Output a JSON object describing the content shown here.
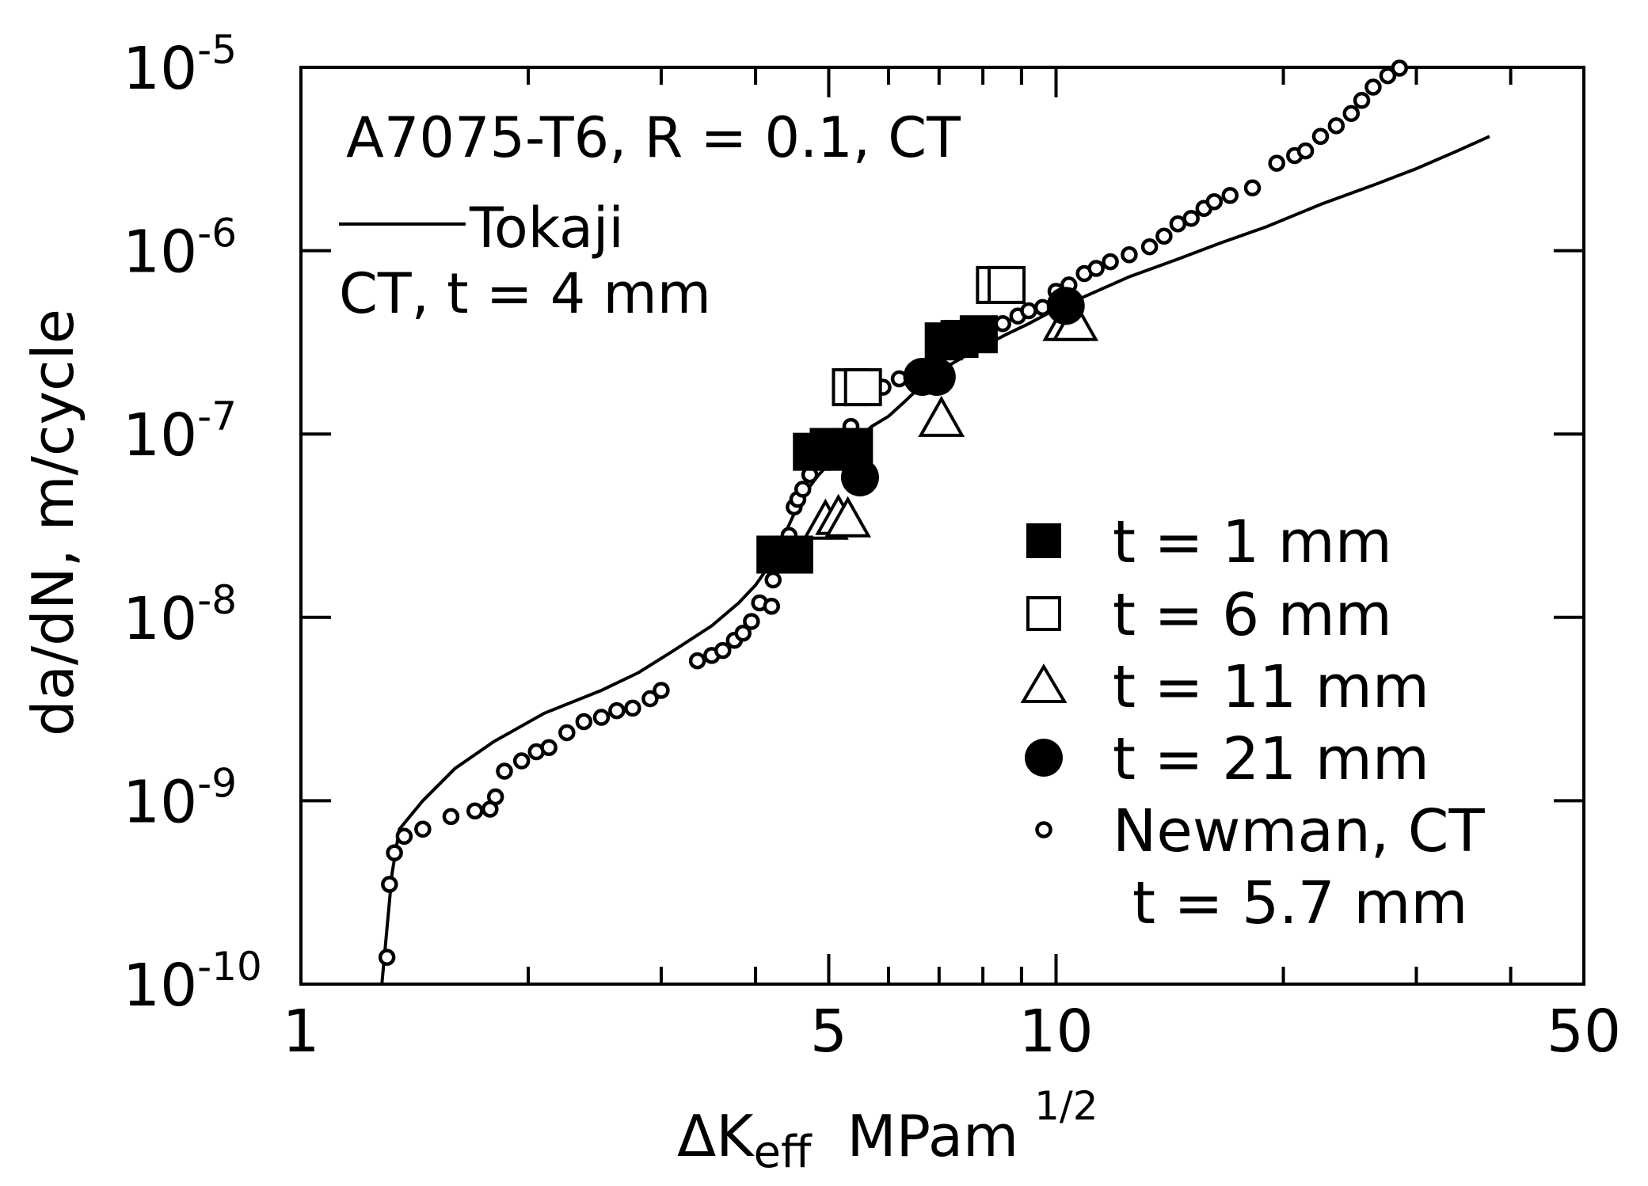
{
  "chart_data": {
    "type": "scatter",
    "title": "",
    "xscale": "log",
    "yscale": "log",
    "xlim": [
      1,
      50
    ],
    "ylim": [
      1e-10,
      1e-05
    ],
    "grid": false,
    "x_axis": {
      "label_prefix": "ΔK",
      "label_sub": "eff",
      "label_units": "MPam",
      "label_sup": "1/2",
      "ticks": [
        {
          "value": 1,
          "label": "1"
        },
        {
          "value": 5,
          "label": "5"
        },
        {
          "value": 10,
          "label": "10"
        },
        {
          "value": 50,
          "label": "50"
        }
      ],
      "minor_ticks": [
        2,
        3,
        4,
        6,
        7,
        8,
        9,
        20,
        30,
        40
      ]
    },
    "y_axis": {
      "label": "da/dN, m/cycle",
      "ticks": [
        {
          "value": 1e-10,
          "base": "10",
          "exp": "-10"
        },
        {
          "value": 1e-09,
          "base": "10",
          "exp": "-9"
        },
        {
          "value": 1e-08,
          "base": "10",
          "exp": "-8"
        },
        {
          "value": 1e-07,
          "base": "10",
          "exp": "-7"
        },
        {
          "value": 1e-06,
          "base": "10",
          "exp": "-6"
        },
        {
          "value": 1e-05,
          "base": "10",
          "exp": "-5"
        }
      ]
    },
    "annotations": {
      "line1": "A7075-T6, R = 0.1, CT",
      "tokaji_label": "Tokaji",
      "tokaji_sub": "CT, t = 4 mm"
    },
    "legend_position": "bottom-right",
    "series": [
      {
        "name": "t = 1 mm",
        "marker": "filled-square",
        "points": [
          [
            4.25,
            2.2e-08
          ],
          [
            4.5,
            2.2e-08
          ],
          [
            4.75,
            8e-08
          ],
          [
            5.0,
            8.5e-08
          ],
          [
            5.25,
            8e-08
          ],
          [
            5.4,
            8.5e-08
          ],
          [
            7.1,
            3.2e-07
          ],
          [
            7.45,
            3.3e-07
          ],
          [
            7.9,
            3.5e-07
          ]
        ]
      },
      {
        "name": "t = 6 mm",
        "marker": "open-square",
        "points": [
          [
            5.35,
            1.8e-07
          ],
          [
            5.55,
            1.8e-07
          ],
          [
            8.3,
            6.5e-07
          ],
          [
            8.6,
            6.5e-07
          ]
        ]
      },
      {
        "name": "t = 11 mm",
        "marker": "open-triangle",
        "points": [
          [
            4.95,
            3.3e-08
          ],
          [
            5.15,
            3.5e-08
          ],
          [
            5.3,
            3.4e-08
          ],
          [
            7.05,
            1.2e-07
          ],
          [
            10.3,
            4e-07
          ],
          [
            10.6,
            4e-07
          ]
        ]
      },
      {
        "name": "t = 21 mm",
        "marker": "filled-circle",
        "points": [
          [
            5.5,
            5.8e-08
          ],
          [
            6.65,
            2.05e-07
          ],
          [
            6.95,
            2.05e-07
          ],
          [
            10.3,
            5e-07
          ]
        ]
      },
      {
        "name": "Newman, CT",
        "name_line2": "t = 5.7 mm",
        "marker": "small-open-circle",
        "points": [
          [
            1.3,
            1.4e-10
          ],
          [
            1.31,
            3.5e-10
          ],
          [
            1.33,
            5.2e-10
          ],
          [
            1.37,
            6.4e-10
          ],
          [
            1.45,
            7e-10
          ],
          [
            1.58,
            8.2e-10
          ],
          [
            1.7,
            8.8e-10
          ],
          [
            1.78,
            9e-10
          ],
          [
            1.81,
            1.05e-09
          ],
          [
            1.86,
            1.45e-09
          ],
          [
            1.96,
            1.65e-09
          ],
          [
            2.05,
            1.85e-09
          ],
          [
            2.13,
            1.95e-09
          ],
          [
            2.25,
            2.35e-09
          ],
          [
            2.37,
            2.7e-09
          ],
          [
            2.5,
            2.85e-09
          ],
          [
            2.62,
            3.1e-09
          ],
          [
            2.75,
            3.2e-09
          ],
          [
            2.9,
            3.6e-09
          ],
          [
            3.0,
            4e-09
          ],
          [
            3.35,
            5.8e-09
          ],
          [
            3.5,
            6.2e-09
          ],
          [
            3.62,
            6.6e-09
          ],
          [
            3.75,
            7.5e-09
          ],
          [
            3.85,
            8.2e-09
          ],
          [
            3.95,
            9.5e-09
          ],
          [
            4.05,
            1.2e-08
          ],
          [
            4.2,
            1.15e-08
          ],
          [
            4.22,
            1.6e-08
          ],
          [
            4.35,
            2.1e-08
          ],
          [
            4.43,
            2.8e-08
          ],
          [
            4.5,
            4e-08
          ],
          [
            4.55,
            4.4e-08
          ],
          [
            4.62,
            5e-08
          ],
          [
            4.72,
            6e-08
          ],
          [
            4.82,
            7e-08
          ],
          [
            4.95,
            8e-08
          ],
          [
            5.1,
            9.5e-08
          ],
          [
            5.35,
            1.1e-07
          ],
          [
            5.9,
            1.8e-07
          ],
          [
            6.2,
            2e-07
          ],
          [
            8.5,
            4e-07
          ],
          [
            8.9,
            4.4e-07
          ],
          [
            9.2,
            4.7e-07
          ],
          [
            9.6,
            4.9e-07
          ],
          [
            10.0,
            6e-07
          ],
          [
            10.4,
            6.5e-07
          ],
          [
            10.9,
            7.5e-07
          ],
          [
            11.3,
            8e-07
          ],
          [
            11.8,
            8.7e-07
          ],
          [
            12.5,
            9.5e-07
          ],
          [
            13.3,
            1.05e-06
          ],
          [
            13.9,
            1.2e-06
          ],
          [
            14.5,
            1.4e-06
          ],
          [
            15.1,
            1.5e-06
          ],
          [
            15.7,
            1.7e-06
          ],
          [
            16.2,
            1.85e-06
          ],
          [
            17.0,
            2e-06
          ],
          [
            18.2,
            2.2e-06
          ],
          [
            19.6,
            3e-06
          ],
          [
            20.7,
            3.3e-06
          ],
          [
            21.4,
            3.5e-06
          ],
          [
            22.4,
            4.2e-06
          ],
          [
            23.5,
            4.8e-06
          ],
          [
            24.6,
            5.6e-06
          ],
          [
            25.4,
            6.6e-06
          ],
          [
            26.3,
            7.8e-06
          ],
          [
            27.5,
            9e-06
          ],
          [
            28.5,
            9.9e-06
          ]
        ]
      },
      {
        "name": "Tokaji",
        "marker": "line",
        "points": [
          [
            1.28,
            1e-10
          ],
          [
            1.3,
            2e-10
          ],
          [
            1.32,
            4e-10
          ],
          [
            1.35,
            7e-10
          ],
          [
            1.45,
            1e-09
          ],
          [
            1.6,
            1.5e-09
          ],
          [
            1.8,
            2.1e-09
          ],
          [
            2.1,
            3e-09
          ],
          [
            2.5,
            4e-09
          ],
          [
            2.8,
            5e-09
          ],
          [
            3.1,
            6.5e-09
          ],
          [
            3.5,
            9e-09
          ],
          [
            3.8,
            1.2e-08
          ],
          [
            4.0,
            1.5e-08
          ],
          [
            4.2,
            2e-08
          ],
          [
            4.4,
            3e-08
          ],
          [
            4.6,
            4.5e-08
          ],
          [
            4.85,
            6e-08
          ],
          [
            5.1,
            7.5e-08
          ],
          [
            5.4,
            9e-08
          ],
          [
            5.7,
            1.1e-07
          ],
          [
            6.0,
            1.25e-07
          ],
          [
            6.3,
            1.5e-07
          ],
          [
            6.6,
            1.8e-07
          ],
          [
            7.0,
            2.2e-07
          ],
          [
            7.5,
            2.6e-07
          ],
          [
            8.0,
            3e-07
          ],
          [
            8.6,
            3.5e-07
          ],
          [
            9.2,
            4e-07
          ],
          [
            10.0,
            4.8e-07
          ],
          [
            11.0,
            5.7e-07
          ],
          [
            12.5,
            7.2e-07
          ],
          [
            14.5,
            9e-07
          ],
          [
            16.5,
            1.1e-06
          ],
          [
            19.0,
            1.35e-06
          ],
          [
            22.5,
            1.8e-06
          ],
          [
            26.5,
            2.3e-06
          ],
          [
            30.0,
            2.8e-06
          ],
          [
            34.0,
            3.5e-06
          ],
          [
            37.5,
            4.2e-06
          ]
        ]
      }
    ]
  }
}
